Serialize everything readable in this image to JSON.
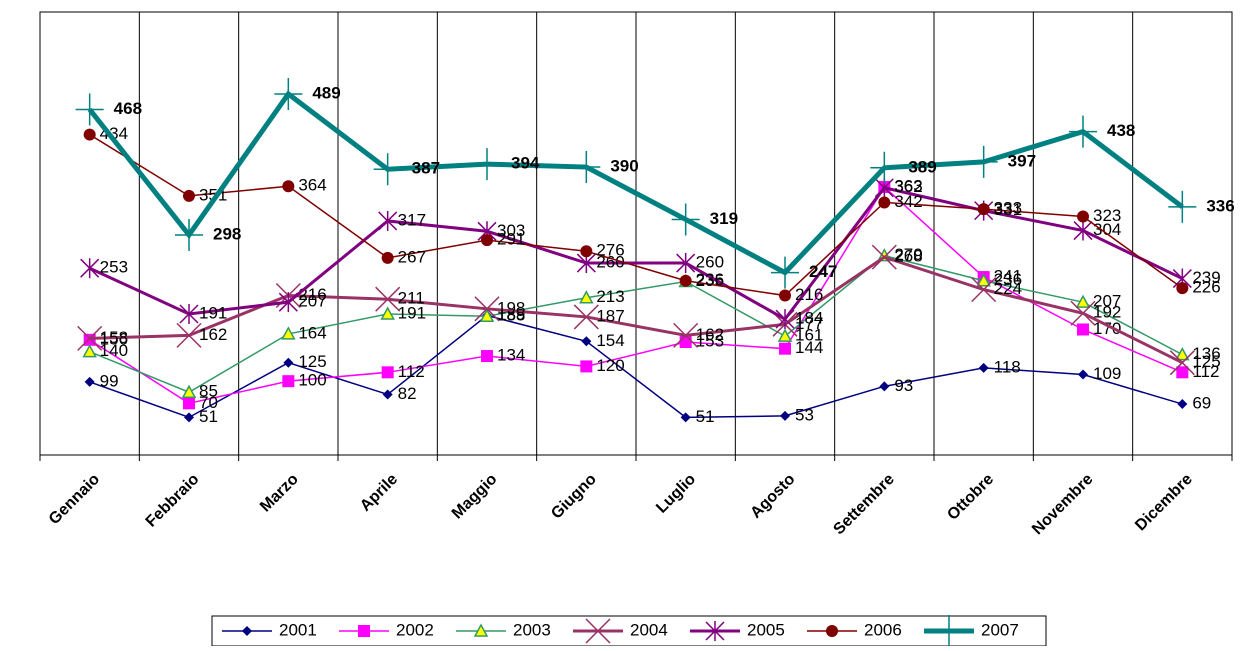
{
  "chart_data": {
    "type": "line",
    "categories": [
      "Gennaio",
      "Febbraio",
      "Marzo",
      "Aprile",
      "Maggio",
      "Giugno",
      "Luglio",
      "Agosto",
      "Settembre",
      "Ottobre",
      "Novembre",
      "Dicembre"
    ],
    "ylim": [
      0,
      600
    ],
    "series": [
      {
        "name": "2001",
        "color": "#000080",
        "marker": "diamond",
        "values": [
          99,
          51,
          125,
          82,
          189,
          154,
          51,
          53,
          93,
          118,
          109,
          69
        ]
      },
      {
        "name": "2002",
        "color": "#ff00ff",
        "marker": "square",
        "values": [
          156,
          70,
          100,
          112,
          134,
          120,
          153,
          144,
          363,
          241,
          170,
          112
        ]
      },
      {
        "name": "2003",
        "color": "#339966",
        "marker": "triangle",
        "values": [
          140,
          85,
          164,
          191,
          188,
          213,
          235,
          161,
          270,
          236,
          207,
          136
        ]
      },
      {
        "name": "2004",
        "color": "#993366",
        "marker": "x",
        "values": [
          158,
          162,
          216,
          211,
          198,
          187,
          162,
          177,
          268,
          224,
          192,
          125
        ]
      },
      {
        "name": "2005",
        "color": "#800080",
        "marker": "star",
        "values": [
          253,
          191,
          207,
          317,
          303,
          260,
          260,
          184,
          362,
          331,
          304,
          239
        ]
      },
      {
        "name": "2006",
        "color": "#800000",
        "marker": "circle",
        "values": [
          434,
          351,
          364,
          267,
          291,
          276,
          236,
          216,
          342,
          333,
          323,
          226
        ]
      },
      {
        "name": "2007",
        "color": "#008080",
        "marker": "plus",
        "bold": true,
        "values": [
          468,
          298,
          489,
          387,
          394,
          390,
          319,
          247,
          389,
          397,
          438,
          336
        ]
      }
    ]
  }
}
